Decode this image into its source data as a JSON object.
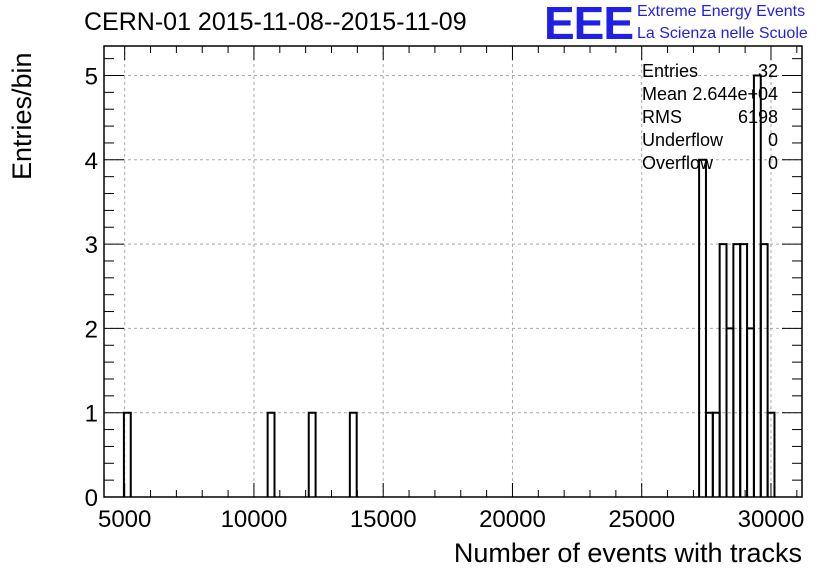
{
  "logo": {
    "mark": "EEE",
    "line1": "Extreme Energy Events",
    "line2": "La Scienza nelle Scuole",
    "color": "#1f1fe6"
  },
  "stats": {
    "rows": [
      {
        "label": "Entries",
        "value": "32"
      },
      {
        "label": "Mean",
        "value": "2.644e+04"
      },
      {
        "label": "RMS",
        "value": "6198"
      },
      {
        "label": "Underflow",
        "value": "0"
      },
      {
        "label": "Overflow",
        "value": "0"
      }
    ]
  },
  "chart_data": {
    "type": "bar",
    "title": "CERN-01 2015-11-08--2015-11-09",
    "xlabel": "Number of events with tracks",
    "ylabel": "Entries/bin",
    "xlim": [
      4200,
      31200
    ],
    "ylim": [
      0,
      5.35
    ],
    "bin_width": 265,
    "xticks": [
      5000,
      10000,
      15000,
      20000,
      25000,
      30000
    ],
    "yticks": [
      0,
      1,
      2,
      3,
      4,
      5
    ],
    "grid": true,
    "histogram_style": "step",
    "bins": [
      {
        "x": 4970,
        "count": 1
      },
      {
        "x": 10530,
        "count": 1
      },
      {
        "x": 12120,
        "count": 1
      },
      {
        "x": 13710,
        "count": 1
      },
      {
        "x": 27220,
        "count": 4
      },
      {
        "x": 27485,
        "count": 1
      },
      {
        "x": 27750,
        "count": 1
      },
      {
        "x": 28015,
        "count": 3
      },
      {
        "x": 28280,
        "count": 2
      },
      {
        "x": 28545,
        "count": 3
      },
      {
        "x": 28810,
        "count": 3
      },
      {
        "x": 29075,
        "count": 2
      },
      {
        "x": 29340,
        "count": 5
      },
      {
        "x": 29605,
        "count": 3
      },
      {
        "x": 29870,
        "count": 1
      }
    ]
  }
}
